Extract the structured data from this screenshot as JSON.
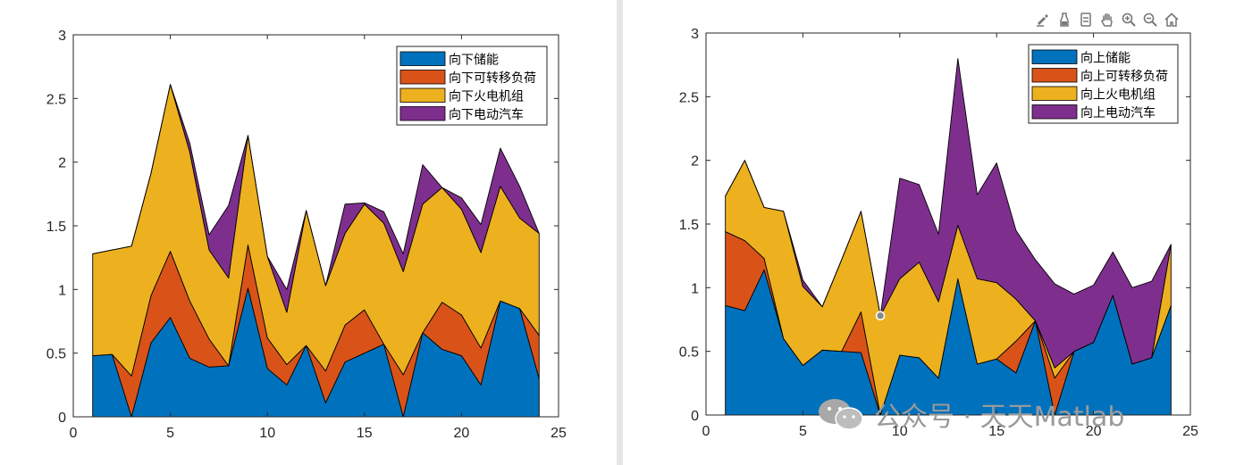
{
  "chart_data": [
    {
      "type": "area",
      "stacked": true,
      "x": [
        1,
        2,
        3,
        4,
        5,
        6,
        7,
        8,
        9,
        10,
        11,
        12,
        13,
        14,
        15,
        16,
        17,
        18,
        19,
        20,
        21,
        22,
        23,
        24
      ],
      "xlim": [
        0,
        25
      ],
      "ylim": [
        0,
        3
      ],
      "xticks": [
        0,
        5,
        10,
        15,
        20,
        25
      ],
      "yticks": [
        0,
        0.5,
        1,
        1.5,
        2,
        2.5,
        3
      ],
      "xtick_labels": [
        "0",
        "5",
        "10",
        "15",
        "20",
        "25"
      ],
      "ytick_labels": [
        "0",
        "0.5",
        "1",
        "1.5",
        "2",
        "2.5",
        "3"
      ],
      "legend_position": "top-right",
      "series": [
        {
          "name": "向下储能",
          "color": "#0072BD",
          "values": [
            0.48,
            0.49,
            0.0,
            0.58,
            0.78,
            0.46,
            0.39,
            0.4,
            1.01,
            0.38,
            0.25,
            0.56,
            0.11,
            0.43,
            0.5,
            0.57,
            0.0,
            0.66,
            0.53,
            0.48,
            0.25,
            0.91,
            0.85,
            0.3
          ]
        },
        {
          "name": "向下可转移负荷",
          "color": "#D95319",
          "values": [
            0.0,
            0.0,
            0.32,
            0.37,
            0.52,
            0.45,
            0.22,
            0.0,
            0.34,
            0.24,
            0.16,
            0.0,
            0.25,
            0.29,
            0.34,
            0.0,
            0.33,
            0.0,
            0.37,
            0.32,
            0.29,
            0.0,
            0.0,
            0.34
          ]
        },
        {
          "name": "向下火电机组",
          "color": "#EDB120",
          "values": [
            0.8,
            0.82,
            1.02,
            0.96,
            1.31,
            1.17,
            0.7,
            0.69,
            0.86,
            0.64,
            0.41,
            1.06,
            0.67,
            0.72,
            0.83,
            0.95,
            0.81,
            1.01,
            0.9,
            0.83,
            0.75,
            0.9,
            0.71,
            0.8
          ]
        },
        {
          "name": "向下电动汽车",
          "color": "#7E2F8E",
          "values": [
            0.0,
            0.0,
            0.0,
            0.0,
            0.0,
            0.07,
            0.12,
            0.57,
            0.0,
            0.0,
            0.18,
            0.0,
            0.0,
            0.23,
            0.01,
            0.09,
            0.14,
            0.31,
            0.0,
            0.09,
            0.22,
            0.3,
            0.25,
            0.0
          ]
        }
      ]
    },
    {
      "type": "area",
      "stacked": true,
      "x": [
        1,
        2,
        3,
        4,
        5,
        6,
        7,
        8,
        9,
        10,
        11,
        12,
        13,
        14,
        15,
        16,
        17,
        18,
        19,
        20,
        21,
        22,
        23,
        24
      ],
      "xlim": [
        0,
        25
      ],
      "ylim": [
        0,
        3
      ],
      "xticks": [
        0,
        5,
        10,
        15,
        20,
        25
      ],
      "yticks": [
        0,
        0.5,
        1,
        1.5,
        2,
        2.5,
        3
      ],
      "xtick_labels": [
        "0",
        "5",
        "10",
        "15",
        "20",
        "25"
      ],
      "ytick_labels": [
        "0",
        "0.5",
        "1",
        "1.5",
        "2",
        "2.5",
        "3"
      ],
      "legend_position": "top-right",
      "series": [
        {
          "name": "向上储能",
          "color": "#0072BD",
          "values": [
            0.86,
            0.82,
            1.14,
            0.6,
            0.39,
            0.51,
            0.5,
            0.49,
            0.0,
            0.47,
            0.45,
            0.29,
            1.07,
            0.4,
            0.44,
            0.33,
            0.74,
            0.0,
            0.5,
            0.57,
            0.94,
            0.4,
            0.45,
            0.86
          ]
        },
        {
          "name": "向上可转移负荷",
          "color": "#D95319",
          "values": [
            0.58,
            0.55,
            0.09,
            0.0,
            0.0,
            0.0,
            0.0,
            0.32,
            0.0,
            0.0,
            0.0,
            0.0,
            0.0,
            0.0,
            0.0,
            0.25,
            0.0,
            0.29,
            0.0,
            0.0,
            0.0,
            0.0,
            0.0,
            0.0
          ]
        },
        {
          "name": "向上火电机组",
          "color": "#EDB120",
          "values": [
            0.28,
            0.63,
            0.4,
            1.0,
            0.62,
            0.34,
            0.72,
            0.79,
            0.78,
            0.6,
            0.75,
            0.6,
            0.42,
            0.67,
            0.6,
            0.33,
            0.0,
            0.08,
            0.0,
            0.0,
            0.0,
            0.0,
            0.0,
            0.48
          ]
        },
        {
          "name": "向上电动汽车",
          "color": "#7E2F8E",
          "values": [
            0.0,
            0.0,
            0.0,
            0.0,
            0.05,
            0.0,
            0.0,
            0.0,
            0.0,
            0.79,
            0.61,
            0.53,
            1.31,
            0.66,
            0.94,
            0.54,
            0.48,
            0.66,
            0.45,
            0.45,
            0.34,
            0.6,
            0.6,
            0.0
          ]
        }
      ]
    }
  ],
  "toolbar": {
    "icons": [
      "brush-icon",
      "data-tips-icon",
      "rotate-icon",
      "pan-hand-icon",
      "zoom-in-icon",
      "zoom-out-icon",
      "home-icon"
    ]
  },
  "watermark": {
    "text": "公众号 · 天天Matlab"
  }
}
